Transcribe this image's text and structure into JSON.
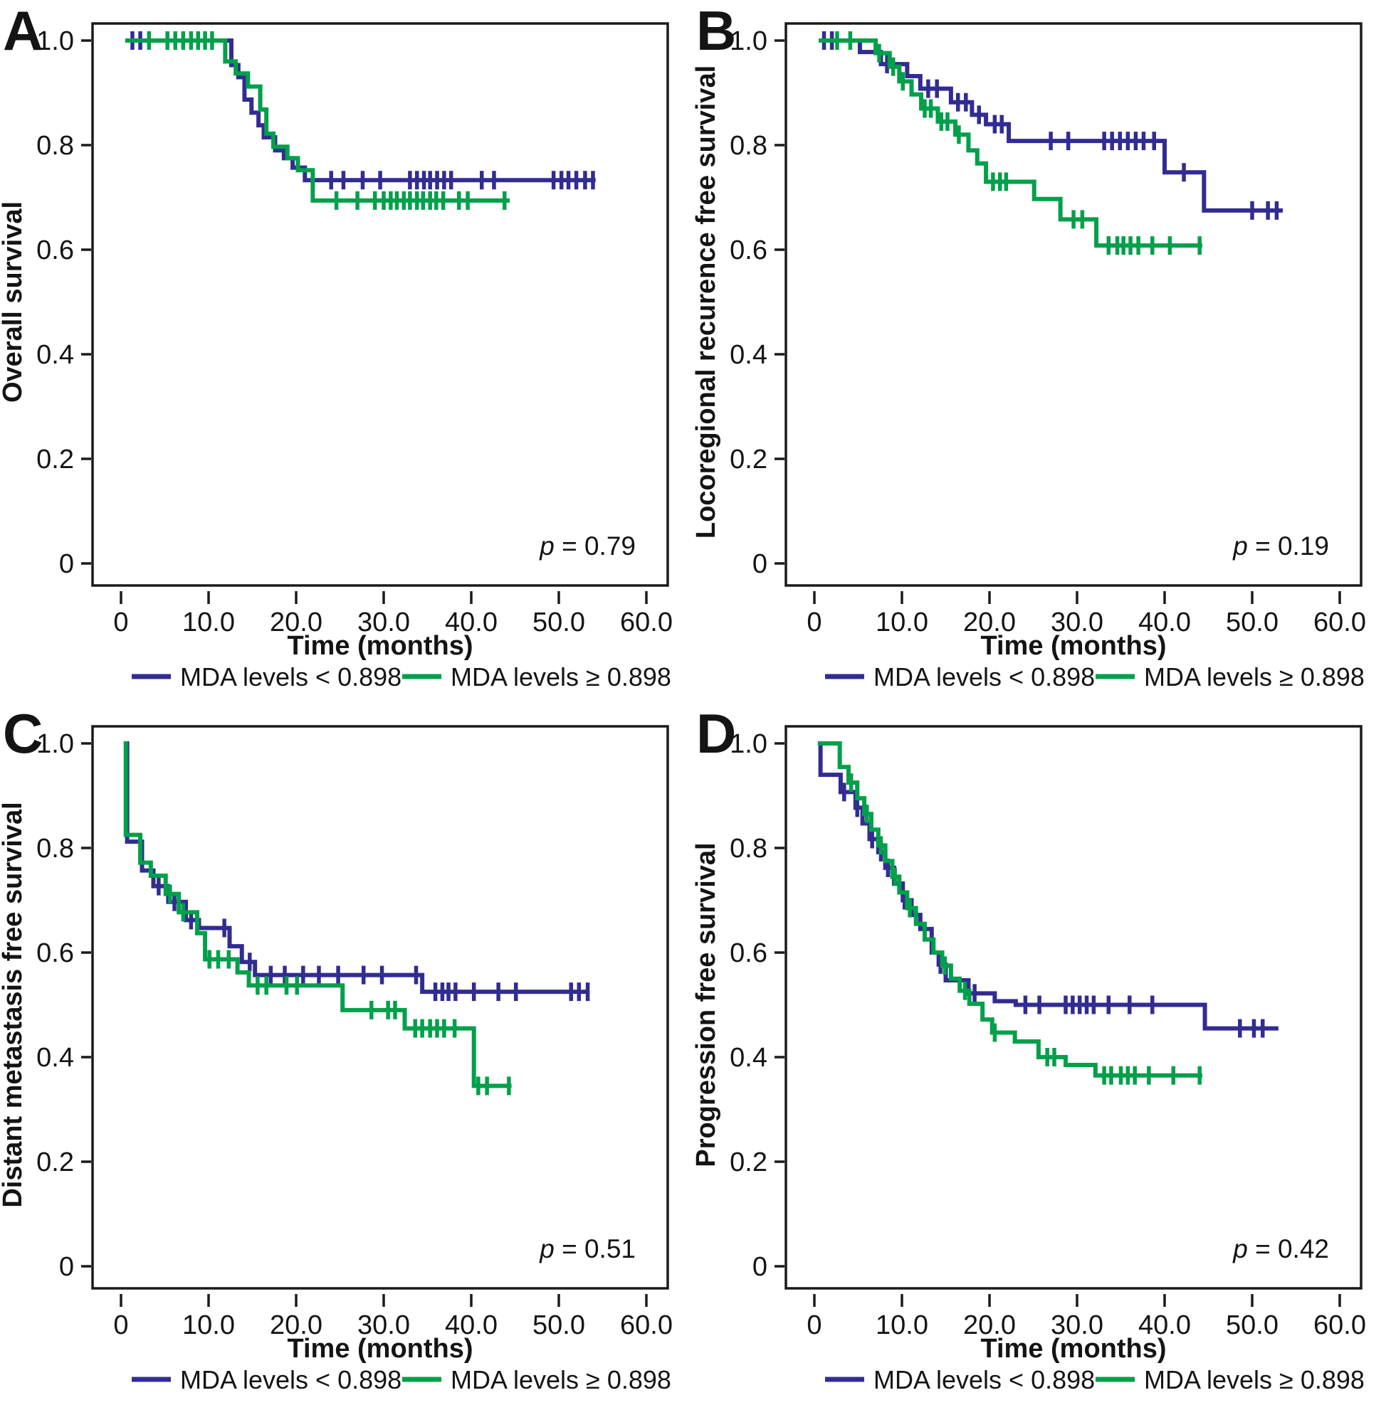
{
  "figure": {
    "type": "kaplan-meier-survival-figure",
    "background": "#ffffff",
    "colors": {
      "mda_low": "#322c91",
      "mda_high": "#00a04a",
      "axis": "#1a1a1a"
    }
  },
  "chart_data": [
    {
      "type": "line",
      "panel": "A",
      "ylabel": "Overall survival",
      "xlabel": "Time (months)",
      "p_value": "p = 0.79",
      "xticks": [
        "0",
        "10.0",
        "20.0",
        "30.0",
        "40.0",
        "50.0",
        "60.0"
      ],
      "xtick_values": [
        0,
        10,
        20,
        30,
        40,
        50,
        60
      ],
      "yticks": [
        "1.0",
        "0.8",
        "0.6",
        "0.4",
        "0.2",
        "0"
      ],
      "ytick_values": [
        1.0,
        0.8,
        0.6,
        0.4,
        0.2,
        0
      ],
      "xlim": [
        -3.3,
        62.5
      ],
      "ylim": [
        -0.05,
        1.03
      ],
      "grid": false,
      "legend_position": "bottom",
      "legend": [
        {
          "label": "MDA levels < 0.898",
          "color": "#322c91"
        },
        {
          "label": "MDA levels ≥ 0.898",
          "color": "#00a04a"
        }
      ],
      "series": [
        {
          "name": "MDA levels < 0.898",
          "slug": "mda-low",
          "color": "#322c91",
          "start_x": 0.5,
          "start_y": 1.0,
          "steps": [
            [
              12.6,
              0.953
            ],
            [
              13.4,
              0.93
            ],
            [
              14.1,
              0.887
            ],
            [
              14.9,
              0.862
            ],
            [
              15.7,
              0.838
            ],
            [
              16.3,
              0.815
            ],
            [
              17.6,
              0.79
            ],
            [
              18.6,
              0.775
            ],
            [
              19.6,
              0.757
            ],
            [
              21.0,
              0.733
            ]
          ],
          "end_x": 54.2,
          "censors": [
            1.3,
            2.2,
            24.0,
            25.4,
            27.6,
            29.6,
            33.0,
            33.8,
            34.6,
            35.3,
            36.1,
            36.9,
            37.7,
            41.2,
            42.6,
            49.4,
            50.3,
            51.1,
            52.0,
            53.0,
            53.9
          ]
        },
        {
          "name": "MDA levels ≥ 0.898",
          "slug": "mda-high",
          "color": "#00a04a",
          "start_x": 0.5,
          "start_y": 1.0,
          "steps": [
            [
              11.9,
              0.96
            ],
            [
              13.1,
              0.937
            ],
            [
              14.5,
              0.912
            ],
            [
              15.9,
              0.868
            ],
            [
              16.6,
              0.822
            ],
            [
              17.4,
              0.797
            ],
            [
              19.0,
              0.775
            ],
            [
              20.2,
              0.752
            ],
            [
              21.9,
              0.694
            ]
          ],
          "end_x": 44.4,
          "censors": [
            3.2,
            5.3,
            6.2,
            7.1,
            8.0,
            8.8,
            9.6,
            10.4,
            24.6,
            27.0,
            29.0,
            30.0,
            30.8,
            31.5,
            32.3,
            33.0,
            33.8,
            34.5,
            35.3,
            36.0,
            36.8,
            38.6,
            39.6,
            43.8
          ]
        }
      ]
    },
    {
      "type": "line",
      "panel": "B",
      "ylabel": "Locoregional recurence free survival",
      "xlabel": "Time (months)",
      "p_value": "p = 0.19",
      "xticks": [
        "0",
        "10.0",
        "20.0",
        "30.0",
        "40.0",
        "50.0",
        "60.0"
      ],
      "xtick_values": [
        0,
        10,
        20,
        30,
        40,
        50,
        60
      ],
      "yticks": [
        "1.0",
        "0.8",
        "0.6",
        "0.4",
        "0.2",
        "0"
      ],
      "ytick_values": [
        1.0,
        0.8,
        0.6,
        0.4,
        0.2,
        0
      ],
      "xlim": [
        -3.3,
        62.5
      ],
      "ylim": [
        -0.05,
        1.03
      ],
      "grid": false,
      "legend_position": "bottom",
      "legend": [
        {
          "label": "MDA levels < 0.898",
          "color": "#322c91"
        },
        {
          "label": "MDA levels ≥ 0.898",
          "color": "#00a04a"
        }
      ],
      "series": [
        {
          "name": "MDA levels < 0.898",
          "slug": "mda-low",
          "color": "#322c91",
          "start_x": 0.5,
          "start_y": 1.0,
          "steps": [
            [
              5.2,
              0.978
            ],
            [
              7.6,
              0.955
            ],
            [
              10.6,
              0.932
            ],
            [
              12.1,
              0.908
            ],
            [
              15.6,
              0.882
            ],
            [
              18.0,
              0.858
            ],
            [
              19.6,
              0.84
            ],
            [
              22.2,
              0.808
            ],
            [
              40.0,
              0.748
            ],
            [
              44.5,
              0.675
            ]
          ],
          "end_x": 53.5,
          "censors": [
            1.1,
            2.0,
            8.3,
            13.0,
            14.0,
            16.4,
            17.3,
            18.8,
            20.6,
            21.4,
            27.0,
            29.0,
            33.1,
            34.0,
            34.9,
            35.8,
            36.7,
            37.6,
            38.8,
            42.2,
            50.0,
            51.8,
            52.8
          ]
        },
        {
          "name": "MDA levels ≥ 0.898",
          "slug": "mda-high",
          "color": "#00a04a",
          "start_x": 0.5,
          "start_y": 1.0,
          "steps": [
            [
              7.0,
              0.976
            ],
            [
              8.6,
              0.95
            ],
            [
              9.7,
              0.922
            ],
            [
              11.1,
              0.897
            ],
            [
              12.2,
              0.87
            ],
            [
              14.1,
              0.845
            ],
            [
              16.1,
              0.82
            ],
            [
              17.6,
              0.79
            ],
            [
              18.6,
              0.765
            ],
            [
              19.6,
              0.73
            ],
            [
              25.1,
              0.697
            ],
            [
              28.1,
              0.658
            ],
            [
              32.2,
              0.608
            ]
          ],
          "end_x": 44.3,
          "censors": [
            2.6,
            4.1,
            7.4,
            9.0,
            10.1,
            12.6,
            13.3,
            14.5,
            15.2,
            16.5,
            20.4,
            21.2,
            21.9,
            29.6,
            30.6,
            33.6,
            34.6,
            35.3,
            36.1,
            37.0,
            38.6,
            40.6,
            44.0
          ]
        }
      ]
    },
    {
      "type": "line",
      "panel": "C",
      "ylabel": "Distant metastasis free survival",
      "xlabel": "Time (months)",
      "p_value": "p = 0.51",
      "xticks": [
        "0",
        "10.0",
        "20.0",
        "30.0",
        "40.0",
        "50.0",
        "60.0"
      ],
      "xtick_values": [
        0,
        10,
        20,
        30,
        40,
        50,
        60
      ],
      "yticks": [
        "1.0",
        "0.8",
        "0.6",
        "0.4",
        "0.2",
        "0"
      ],
      "ytick_values": [
        1.0,
        0.8,
        0.6,
        0.4,
        0.2,
        0
      ],
      "xlim": [
        -3.3,
        62.5
      ],
      "ylim": [
        -0.05,
        1.03
      ],
      "grid": false,
      "legend_position": "bottom",
      "legend": [
        {
          "label": "MDA levels < 0.898",
          "color": "#322c91"
        },
        {
          "label": "MDA levels ≥ 0.898",
          "color": "#00a04a"
        }
      ],
      "series": [
        {
          "name": "MDA levels < 0.898",
          "slug": "mda-low",
          "color": "#322c91",
          "start_x": 0.35,
          "start_y": 1.0,
          "steps": [
            [
              0.7,
              0.812
            ],
            [
              2.4,
              0.757
            ],
            [
              3.7,
              0.727
            ],
            [
              5.4,
              0.697
            ],
            [
              7.4,
              0.662
            ],
            [
              8.9,
              0.647
            ],
            [
              12.4,
              0.612
            ],
            [
              13.8,
              0.582
            ],
            [
              15.3,
              0.557
            ],
            [
              34.4,
              0.525
            ]
          ],
          "end_x": 53.5,
          "censors": [
            4.3,
            6.1,
            8.0,
            11.8,
            14.7,
            17.1,
            18.7,
            20.8,
            22.6,
            24.8,
            27.7,
            29.8,
            33.7,
            35.9,
            36.7,
            37.4,
            38.2,
            40.3,
            43.1,
            45.1,
            51.4,
            52.3,
            53.3
          ]
        },
        {
          "name": "MDA levels ≥ 0.898",
          "slug": "mda-high",
          "color": "#00a04a",
          "start_x": 0.3,
          "start_y": 1.0,
          "steps": [
            [
              0.55,
              0.825
            ],
            [
              2.2,
              0.772
            ],
            [
              3.4,
              0.747
            ],
            [
              5.1,
              0.712
            ],
            [
              6.6,
              0.677
            ],
            [
              8.7,
              0.637
            ],
            [
              9.6,
              0.587
            ],
            [
              13.3,
              0.562
            ],
            [
              14.6,
              0.537
            ],
            [
              25.3,
              0.49
            ],
            [
              32.4,
              0.455
            ],
            [
              40.3,
              0.345
            ]
          ],
          "end_x": 44.6,
          "censors": [
            5.6,
            7.1,
            10.1,
            11.1,
            12.3,
            15.6,
            16.6,
            18.9,
            20.1,
            28.6,
            30.5,
            31.3,
            33.6,
            34.4,
            35.3,
            36.1,
            36.9,
            38.1,
            40.8,
            41.8,
            44.3
          ]
        }
      ]
    },
    {
      "type": "line",
      "panel": "D",
      "ylabel": "Progression free survival",
      "xlabel": "Time (months)",
      "p_value": "p = 0.42",
      "xticks": [
        "0",
        "10.0",
        "20.0",
        "30.0",
        "40.0",
        "50.0",
        "60.0"
      ],
      "xtick_values": [
        0,
        10,
        20,
        30,
        40,
        50,
        60
      ],
      "yticks": [
        "1.0",
        "0.8",
        "0.6",
        "0.4",
        "0.2",
        "0"
      ],
      "ytick_values": [
        1.0,
        0.8,
        0.6,
        0.4,
        0.2,
        0
      ],
      "xlim": [
        -3.3,
        62.5
      ],
      "ylim": [
        -0.05,
        1.03
      ],
      "grid": false,
      "legend_position": "bottom",
      "legend": [
        {
          "label": "MDA levels < 0.898",
          "color": "#322c91"
        },
        {
          "label": "MDA levels ≥ 0.898",
          "color": "#00a04a"
        }
      ],
      "series": [
        {
          "name": "MDA levels < 0.898",
          "slug": "mda-low",
          "color": "#322c91",
          "start_x": 0.4,
          "start_y": 1.0,
          "steps": [
            [
              0.7,
              0.94
            ],
            [
              3.0,
              0.907
            ],
            [
              4.7,
              0.877
            ],
            [
              5.5,
              0.847
            ],
            [
              6.3,
              0.817
            ],
            [
              7.3,
              0.792
            ],
            [
              8.1,
              0.762
            ],
            [
              9.1,
              0.732
            ],
            [
              10.1,
              0.7
            ],
            [
              11.1,
              0.672
            ],
            [
              12.1,
              0.645
            ],
            [
              13.4,
              0.6
            ],
            [
              14.2,
              0.577
            ],
            [
              15.0,
              0.547
            ],
            [
              17.6,
              0.522
            ],
            [
              20.6,
              0.507
            ],
            [
              23.0,
              0.5
            ],
            [
              44.6,
              0.455
            ]
          ],
          "end_x": 53.0,
          "censors": [
            3.4,
            4.9,
            6.6,
            7.6,
            8.4,
            10.3,
            14.4,
            18.3,
            24.1,
            25.7,
            28.7,
            29.5,
            30.3,
            31.1,
            31.9,
            33.6,
            36.0,
            38.6,
            48.6,
            50.2,
            51.2
          ]
        },
        {
          "name": "MDA levels ≥ 0.898",
          "slug": "mda-high",
          "color": "#00a04a",
          "start_x": 0.4,
          "start_y": 1.0,
          "steps": [
            [
              2.9,
              0.955
            ],
            [
              3.9,
              0.925
            ],
            [
              4.9,
              0.895
            ],
            [
              5.7,
              0.865
            ],
            [
              6.5,
              0.835
            ],
            [
              7.3,
              0.805
            ],
            [
              8.1,
              0.775
            ],
            [
              8.9,
              0.745
            ],
            [
              9.7,
              0.715
            ],
            [
              10.6,
              0.685
            ],
            [
              11.6,
              0.655
            ],
            [
              12.6,
              0.625
            ],
            [
              13.6,
              0.6
            ],
            [
              14.6,
              0.575
            ],
            [
              15.6,
              0.55
            ],
            [
              16.6,
              0.527
            ],
            [
              17.7,
              0.502
            ],
            [
              19.2,
              0.472
            ],
            [
              20.3,
              0.447
            ],
            [
              22.9,
              0.43
            ],
            [
              25.6,
              0.4
            ],
            [
              28.7,
              0.385
            ],
            [
              32.1,
              0.365
            ]
          ],
          "end_x": 44.3,
          "censors": [
            4.2,
            6.0,
            7.6,
            9.2,
            10.9,
            14.9,
            17.2,
            20.6,
            26.6,
            27.4,
            33.1,
            33.9,
            35.0,
            35.8,
            36.6,
            38.2,
            41.0,
            44.0
          ]
        }
      ]
    }
  ]
}
